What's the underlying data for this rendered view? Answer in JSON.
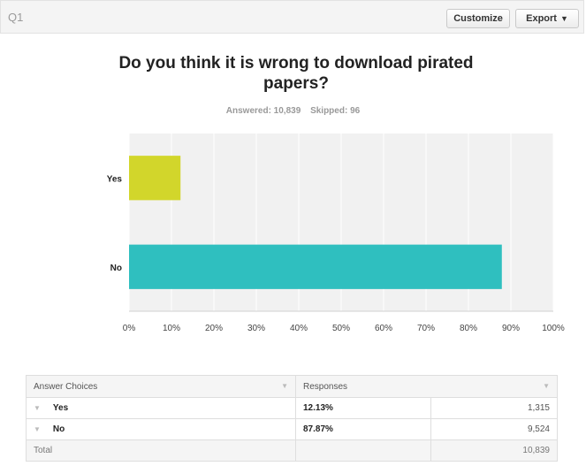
{
  "header": {
    "question_label": "Q1",
    "customize_label": "Customize",
    "export_label": "Export"
  },
  "summary": {
    "answered": "Answered: 10,839",
    "skipped": "Skipped: 96"
  },
  "colors": {
    "yes": "#d2d62b",
    "no": "#2fbfbf",
    "plot_bg": "#f1f1f1",
    "grid": "#ffffff"
  },
  "chart_data": {
    "type": "bar",
    "orientation": "horizontal",
    "title": "Do you think it is wrong to download pirated papers?",
    "categories": [
      "Yes",
      "No"
    ],
    "values": [
      12.13,
      87.87
    ],
    "xlim": [
      0,
      100
    ],
    "ticks": [
      "0%",
      "10%",
      "20%",
      "30%",
      "40%",
      "50%",
      "60%",
      "70%",
      "80%",
      "90%",
      "100%"
    ],
    "grid": true
  },
  "table": {
    "col_choices": "Answer Choices",
    "col_responses": "Responses",
    "rows": [
      {
        "label": "Yes",
        "pct": "12.13%",
        "count": "1,315"
      },
      {
        "label": "No",
        "pct": "87.87%",
        "count": "9,524"
      }
    ],
    "total_label": "Total",
    "total_count": "10,839"
  }
}
